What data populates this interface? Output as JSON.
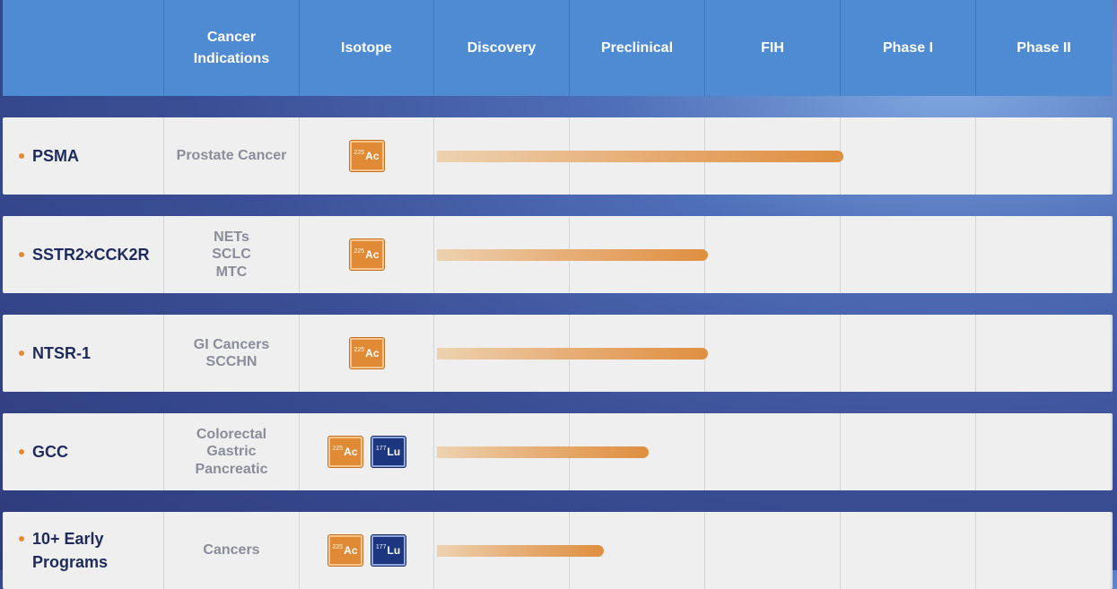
{
  "header": {
    "columns": [
      "",
      "Cancer\nIndications",
      "Isotope",
      "Discovery",
      "Preclinical",
      "FIH",
      "Phase I",
      "Phase II"
    ]
  },
  "column_widths": [
    180,
    151,
    150,
    151,
    151,
    151,
    151,
    151
  ],
  "isotope_labels": {
    "ac": {
      "mass": "225",
      "symbol": "Ac"
    },
    "lu": {
      "mass": "177",
      "symbol": "Lu"
    }
  },
  "rows": [
    {
      "target": "PSMA",
      "indications": [
        "Prostate Cancer"
      ],
      "isotopes": [
        "ac"
      ],
      "progress_stages": 3.0
    },
    {
      "target": "SSTR2×CCK2R",
      "indications": [
        "NETs",
        "SCLC",
        "MTC"
      ],
      "isotopes": [
        "ac"
      ],
      "progress_stages": 2.0
    },
    {
      "target": "NTSR-1",
      "indications": [
        "GI Cancers",
        "SCCHN"
      ],
      "isotopes": [
        "ac"
      ],
      "progress_stages": 2.0
    },
    {
      "target": "GCC",
      "indications": [
        "Colorectal",
        "Gastric",
        "Pancreatic"
      ],
      "isotopes": [
        "ac",
        "lu"
      ],
      "progress_stages": 1.56
    },
    {
      "target": "10+ Early\nPrograms",
      "indications": [
        "Cancers"
      ],
      "isotopes": [
        "ac",
        "lu"
      ],
      "progress_stages": 1.23
    }
  ],
  "colors": {
    "header_bg": "#4f8bd2",
    "row_bg": "#efeff0",
    "accent_orange": "#e08a36",
    "lu_blue": "#1d3680",
    "target_text": "#1f2a5c"
  }
}
